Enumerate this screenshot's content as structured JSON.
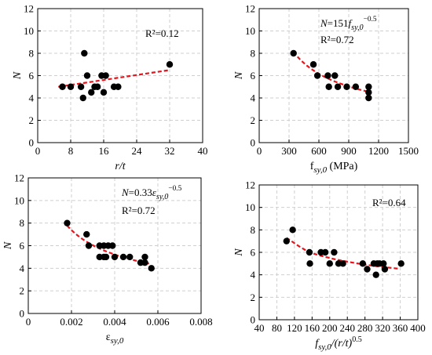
{
  "chart_data": [
    {
      "type": "scatter",
      "panel": "a",
      "xlabel": "r/t",
      "ylabel": "N",
      "xlim": [
        0,
        40
      ],
      "ylim": [
        0,
        12
      ],
      "xticks": [
        "0",
        "8",
        "16",
        "24",
        "32",
        "40"
      ],
      "yticks": [
        "0",
        "2",
        "4",
        "6",
        "8",
        "10",
        "12"
      ],
      "grid": true,
      "annotation": "R²=0.12",
      "points": [
        [
          6,
          5
        ],
        [
          8,
          5
        ],
        [
          10.5,
          5
        ],
        [
          11,
          4
        ],
        [
          11.3,
          8
        ],
        [
          12,
          6
        ],
        [
          13,
          4.5
        ],
        [
          13.8,
          5
        ],
        [
          14.5,
          5
        ],
        [
          15.5,
          6
        ],
        [
          16,
          4.5
        ],
        [
          16.5,
          6
        ],
        [
          18.5,
          5
        ],
        [
          19.5,
          5
        ],
        [
          32,
          7
        ]
      ],
      "fit": {
        "type": "linear",
        "x": [
          5,
          32
        ],
        "y": [
          5.0,
          6.5
        ]
      }
    },
    {
      "type": "scatter",
      "panel": "b",
      "xlabel": "f_{sy,0} (MPa)",
      "ylabel": "N",
      "xlim": [
        0,
        1500
      ],
      "ylim": [
        0,
        12
      ],
      "xticks": [
        "0",
        "300",
        "600",
        "900",
        "1200",
        "1500"
      ],
      "yticks": [
        "0",
        "2",
        "4",
        "6",
        "8",
        "10",
        "12"
      ],
      "grid": true,
      "annotation_equation": "N=151f_{sy,0}^{−0.5}",
      "annotation": "R²=0.72",
      "points": [
        [
          345,
          8
        ],
        [
          545,
          7
        ],
        [
          585,
          6
        ],
        [
          690,
          6
        ],
        [
          700,
          5
        ],
        [
          760,
          6
        ],
        [
          790,
          5
        ],
        [
          880,
          5
        ],
        [
          970,
          5
        ],
        [
          1100,
          4
        ],
        [
          1100,
          4.5
        ],
        [
          1100,
          5
        ]
      ],
      "fit": {
        "type": "power",
        "coef": 151,
        "exp": -0.5,
        "xrange": [
          345,
          1100
        ]
      }
    },
    {
      "type": "scatter",
      "panel": "c",
      "xlabel": "ε_{sy,0}",
      "ylabel": "N",
      "xlim": [
        0,
        0.008
      ],
      "ylim": [
        0,
        12
      ],
      "xticks": [
        "0",
        "0.002",
        "0.004",
        "0.006",
        "0.008"
      ],
      "yticks": [
        "0",
        "2",
        "4",
        "6",
        "8",
        "10",
        "12"
      ],
      "grid": true,
      "annotation_equation": "N=0.33ε_{sy,0}^{−0.5}",
      "annotation": "R²=0.72",
      "points": [
        [
          0.0018,
          8
        ],
        [
          0.0027,
          7
        ],
        [
          0.0028,
          6
        ],
        [
          0.0033,
          5
        ],
        [
          0.0033,
          6
        ],
        [
          0.0035,
          5
        ],
        [
          0.0035,
          6
        ],
        [
          0.0036,
          5
        ],
        [
          0.0037,
          6
        ],
        [
          0.0039,
          6
        ],
        [
          0.004,
          5
        ],
        [
          0.0044,
          5
        ],
        [
          0.0047,
          5
        ],
        [
          0.0052,
          4.5
        ],
        [
          0.0054,
          5
        ],
        [
          0.0054,
          4.5
        ],
        [
          0.0057,
          4
        ]
      ],
      "fit": {
        "type": "power",
        "coef": 0.33,
        "exp": -0.5,
        "xrange": [
          0.0018,
          0.0056
        ]
      }
    },
    {
      "type": "scatter",
      "panel": "d",
      "xlabel": "f_{sy,0}/(r/t)^{0.5}",
      "ylabel": "N",
      "xlim": [
        40,
        400
      ],
      "ylim": [
        0,
        12
      ],
      "xticks": [
        "40",
        "80",
        "120",
        "160",
        "200",
        "240",
        "280",
        "320",
        "360",
        "400"
      ],
      "yticks": [
        "0",
        "2",
        "4",
        "6",
        "8",
        "10",
        "12"
      ],
      "grid": true,
      "annotation": "R²=0.64",
      "points": [
        [
          102,
          7
        ],
        [
          116,
          8
        ],
        [
          154,
          6
        ],
        [
          155,
          5
        ],
        [
          180,
          6
        ],
        [
          190,
          6
        ],
        [
          200,
          5
        ],
        [
          210,
          6
        ],
        [
          220,
          5
        ],
        [
          230,
          5
        ],
        [
          275,
          5
        ],
        [
          285,
          4.5
        ],
        [
          300,
          5
        ],
        [
          305,
          4
        ],
        [
          308,
          5
        ],
        [
          313,
          5
        ],
        [
          322,
          5
        ],
        [
          325,
          4.5
        ],
        [
          362,
          5
        ]
      ],
      "fit": {
        "type": "curve",
        "x": [
          102,
          150,
          200,
          250,
          300,
          355
        ],
        "y": [
          7.3,
          6.1,
          5.5,
          5.1,
          4.8,
          4.55
        ]
      }
    }
  ]
}
